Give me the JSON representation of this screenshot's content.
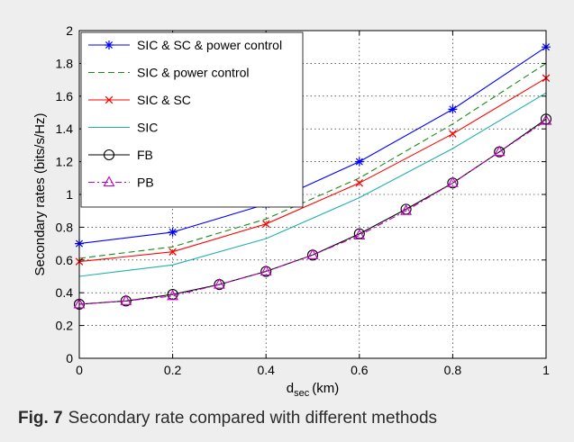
{
  "caption": {
    "label": "Fig. 7",
    "text": "Secondary rate compared with different methods"
  },
  "chart_data": {
    "type": "line",
    "title": "",
    "xlabel": "d",
    "xlabel_sub": "sec",
    "xlabel_unit": "(km)",
    "ylabel": "Secondary rates (bits/s/Hz)",
    "xlim": [
      0,
      1
    ],
    "ylim": [
      0,
      2
    ],
    "grid": true,
    "legend_position": "top-left",
    "x_ticks": [
      0,
      0.2,
      0.4,
      0.6,
      0.8,
      1
    ],
    "x_tick_labels": [
      "0",
      "0.2",
      "0.4",
      "0.6",
      "0.8",
      "1"
    ],
    "y_ticks": [
      0,
      0.2,
      0.4,
      0.6,
      0.8,
      1,
      1.2,
      1.4,
      1.6,
      1.8,
      2
    ],
    "y_tick_labels": [
      "0",
      "0.2",
      "0.4",
      "0.6",
      "0.8",
      "1",
      "1.2",
      "1.4",
      "1.6",
      "1.8",
      "2"
    ],
    "series": [
      {
        "name": "SIC & SC & power control",
        "color": "#0000ff",
        "dash": "solid",
        "marker": "asterisk",
        "x": [
          0,
          0.2,
          0.4,
          0.6,
          0.8,
          1
        ],
        "values": [
          0.7,
          0.77,
          0.94,
          1.2,
          1.52,
          1.9
        ]
      },
      {
        "name": "SIC & power control",
        "color": "#1a8a1a",
        "dash": "dashed",
        "marker": "none",
        "x": [
          0,
          0.2,
          0.4,
          0.6,
          0.8,
          1
        ],
        "values": [
          0.61,
          0.68,
          0.85,
          1.1,
          1.43,
          1.8
        ]
      },
      {
        "name": "SIC & SC",
        "color": "#ff0000",
        "dash": "solid",
        "marker": "x",
        "x": [
          0,
          0.2,
          0.4,
          0.6,
          0.8,
          1
        ],
        "values": [
          0.59,
          0.65,
          0.82,
          1.07,
          1.37,
          1.71
        ]
      },
      {
        "name": "SIC",
        "color": "#20b2aa",
        "dash": "solid",
        "marker": "none",
        "x": [
          0,
          0.2,
          0.4,
          0.6,
          0.8,
          1
        ],
        "values": [
          0.5,
          0.57,
          0.73,
          0.98,
          1.28,
          1.62
        ]
      },
      {
        "name": "FB",
        "color": "#000000",
        "dash": "solid",
        "marker": "circle",
        "x": [
          0,
          0.1,
          0.2,
          0.3,
          0.4,
          0.5,
          0.6,
          0.7,
          0.8,
          0.9,
          1
        ],
        "values": [
          0.33,
          0.35,
          0.39,
          0.45,
          0.53,
          0.63,
          0.76,
          0.91,
          1.07,
          1.26,
          1.46
        ]
      },
      {
        "name": "PB",
        "color": "#c000c0",
        "dash": "dashdot",
        "marker": "triangle",
        "x": [
          0,
          0.1,
          0.2,
          0.3,
          0.4,
          0.5,
          0.6,
          0.7,
          0.8,
          0.9,
          1
        ],
        "values": [
          0.33,
          0.35,
          0.38,
          0.45,
          0.53,
          0.63,
          0.75,
          0.9,
          1.07,
          1.26,
          1.45
        ]
      }
    ]
  }
}
